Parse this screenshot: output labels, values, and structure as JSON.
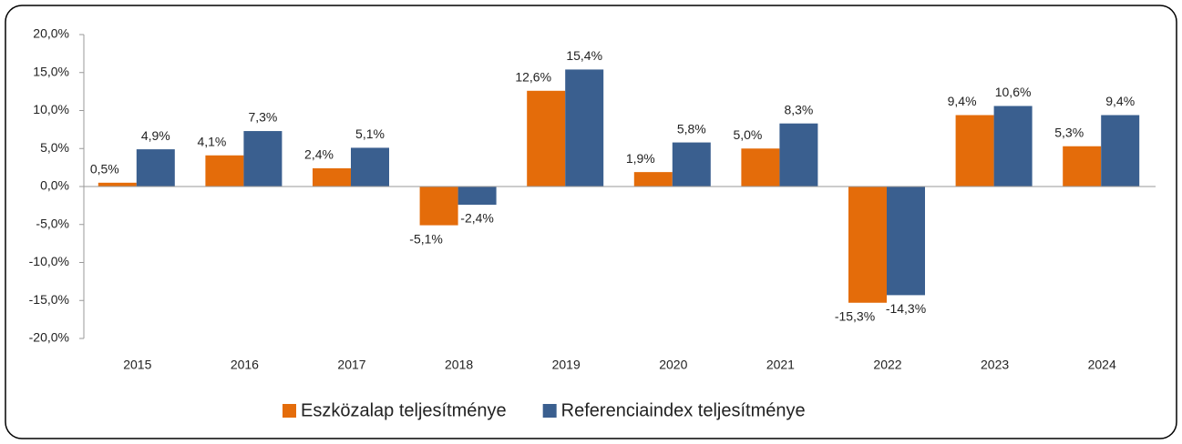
{
  "chart_data": {
    "type": "bar",
    "categories": [
      "2015",
      "2016",
      "2017",
      "2018",
      "2019",
      "2020",
      "2021",
      "2022",
      "2023",
      "2024"
    ],
    "series": [
      {
        "name": "Eszközalap teljesítménye",
        "color": "#e46c0a",
        "values": [
          0.5,
          4.1,
          2.4,
          -5.1,
          12.6,
          1.9,
          5.0,
          -15.3,
          9.4,
          5.3
        ],
        "value_labels": [
          "0,5%",
          "4,1%",
          "2,4%",
          "-5,1%",
          "12,6%",
          "1,9%",
          "5,0%",
          "-15,3%",
          "9,4%",
          "5,3%"
        ]
      },
      {
        "name": "Referenciaindex teljesítménye",
        "color": "#3a5f8f",
        "values": [
          4.9,
          7.3,
          5.1,
          -2.4,
          15.4,
          5.8,
          8.3,
          -14.3,
          10.6,
          9.4
        ],
        "value_labels": [
          "4,9%",
          "7,3%",
          "5,1%",
          "-2,4%",
          "15,4%",
          "5,8%",
          "8,3%",
          "-14,3%",
          "10,6%",
          "9,4%"
        ]
      }
    ],
    "ylim": [
      -20,
      20
    ],
    "yticks": [
      {
        "value": -20,
        "label": "-20,0%"
      },
      {
        "value": -15,
        "label": "-15,0%"
      },
      {
        "value": -10,
        "label": "-10,0%"
      },
      {
        "value": -5,
        "label": "-5,0%"
      },
      {
        "value": 0,
        "label": "0,0%"
      },
      {
        "value": 5,
        "label": "5,0%"
      },
      {
        "value": 10,
        "label": "10,0%"
      },
      {
        "value": 15,
        "label": "15,0%"
      },
      {
        "value": 20,
        "label": "20,0%"
      }
    ],
    "legend": "bottom"
  }
}
